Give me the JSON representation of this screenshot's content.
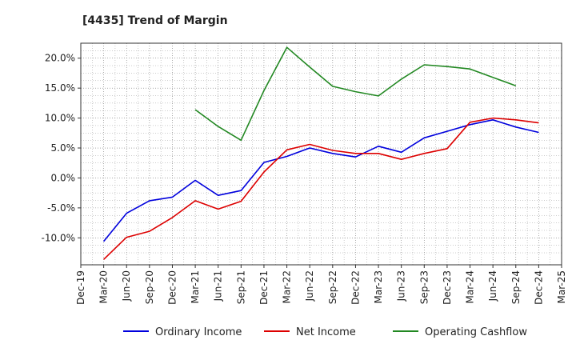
{
  "chart_data": {
    "type": "line",
    "title": "[4435]  Trend of Margin",
    "xlabel": "",
    "ylabel": "",
    "categories": [
      "Dec-19",
      "Mar-20",
      "Jun-20",
      "Sep-20",
      "Dec-20",
      "Mar-21",
      "Jun-21",
      "Sep-21",
      "Dec-21",
      "Mar-22",
      "Jun-22",
      "Sep-22",
      "Dec-22",
      "Mar-23",
      "Jun-23",
      "Sep-23",
      "Dec-23",
      "Mar-24",
      "Jun-24",
      "Sep-24",
      "Dec-24",
      "Mar-25"
    ],
    "ylim": [
      -14.5,
      22.5
    ],
    "yticks": [
      -10,
      -5,
      0,
      5,
      10,
      15,
      20
    ],
    "ytick_labels": [
      "-10.0%",
      "-5.0%",
      "0.0%",
      "5.0%",
      "10.0%",
      "15.0%",
      "20.0%"
    ],
    "grid": true,
    "legend_position": "bottom",
    "series": [
      {
        "name": "Ordinary Income",
        "color": "#0000dd",
        "values": [
          null,
          -10.6,
          -5.9,
          -3.8,
          -3.2,
          -0.4,
          -2.9,
          -2.1,
          2.6,
          3.6,
          5.0,
          4.1,
          3.5,
          5.3,
          4.3,
          6.7,
          7.8,
          8.9,
          9.7,
          8.5,
          7.6,
          null
        ]
      },
      {
        "name": "Net Income",
        "color": "#dd0000",
        "values": [
          null,
          -13.6,
          -9.9,
          -8.9,
          -6.6,
          -3.8,
          -5.2,
          -3.9,
          1.0,
          4.7,
          5.6,
          4.6,
          4.1,
          4.1,
          3.1,
          4.1,
          4.9,
          9.3,
          10.0,
          9.7,
          9.2,
          null
        ]
      },
      {
        "name": "Operating Cashflow",
        "color": "#228822",
        "values": [
          null,
          null,
          null,
          null,
          null,
          11.4,
          8.6,
          6.3,
          14.6,
          21.8,
          18.5,
          15.3,
          14.4,
          13.7,
          16.5,
          18.9,
          18.6,
          18.2,
          16.8,
          15.4,
          null,
          null
        ]
      }
    ]
  }
}
